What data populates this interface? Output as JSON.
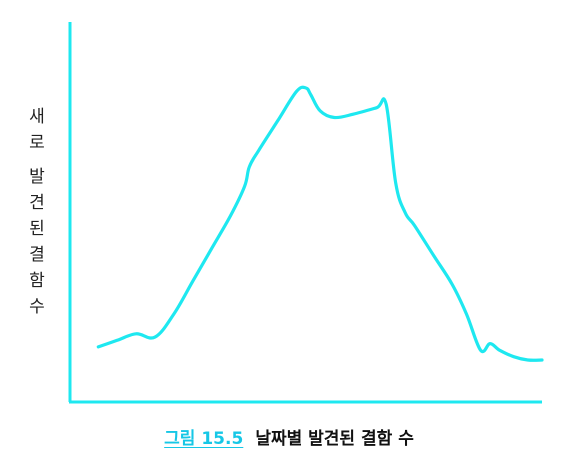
{
  "figure": {
    "caption_label": "그림 15.5",
    "caption_title": "날짜별 발견된 결함 수"
  },
  "chart_data": {
    "type": "line",
    "title": "",
    "xlabel": "",
    "ylabel": "새로 발견된 결함 수",
    "ylabel_lines": [
      "새",
      "로",
      "발",
      "견",
      "된",
      "결",
      "함",
      "수"
    ],
    "x_ticks": false,
    "y_ticks": false,
    "grid": false,
    "legend": "none",
    "xlim": [
      0,
      100
    ],
    "ylim": [
      0,
      100
    ],
    "line_color": "#1ee8f0",
    "axis_color": "#1ee8f0",
    "series": [
      {
        "x": [
          6,
          10,
          14,
          18,
          22,
          26,
          30,
          34,
          37,
          38,
          40,
          44,
          48,
          50,
          51,
          53,
          56,
          60,
          65,
          67,
          69,
          71,
          73,
          77,
          81,
          84,
          87,
          89,
          91,
          94,
          97,
          100
        ],
        "y": [
          15,
          17,
          19,
          18,
          25,
          35,
          45,
          55,
          64,
          70,
          75,
          84,
          93,
          94,
          92,
          87,
          85,
          86,
          88,
          89,
          65,
          56,
          52,
          43,
          34,
          25,
          14,
          16,
          14,
          12,
          11,
          11
        ]
      }
    ]
  }
}
